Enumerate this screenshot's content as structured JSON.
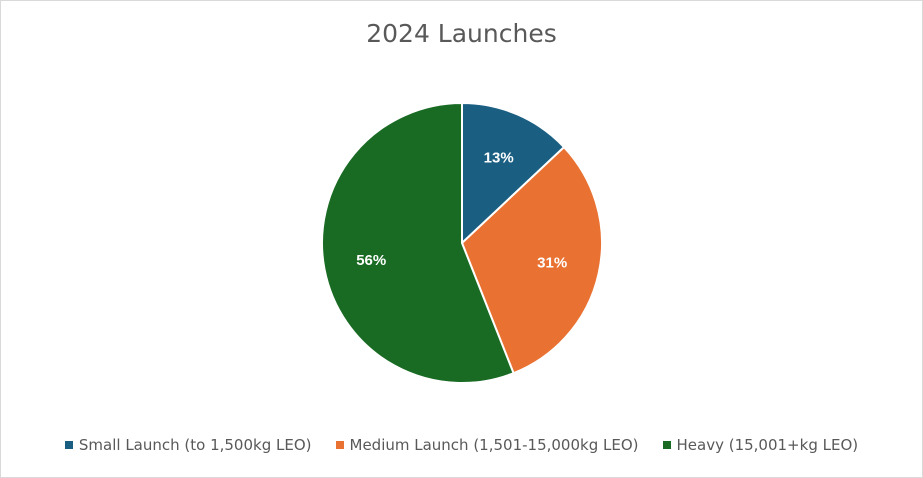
{
  "chart_data": {
    "type": "pie",
    "title": "2024 Launches",
    "categories": [
      "Small Launch (to 1,500kg LEO)",
      "Medium Launch (1,501-15,000kg LEO)",
      "Heavy (15,001+kg LEO)"
    ],
    "values": [
      13,
      31,
      56
    ],
    "data_labels": [
      "13%",
      "31%",
      "56%"
    ],
    "colors": [
      "#1a5e82",
      "#e97131",
      "#196b24"
    ],
    "legend_position": "bottom"
  }
}
